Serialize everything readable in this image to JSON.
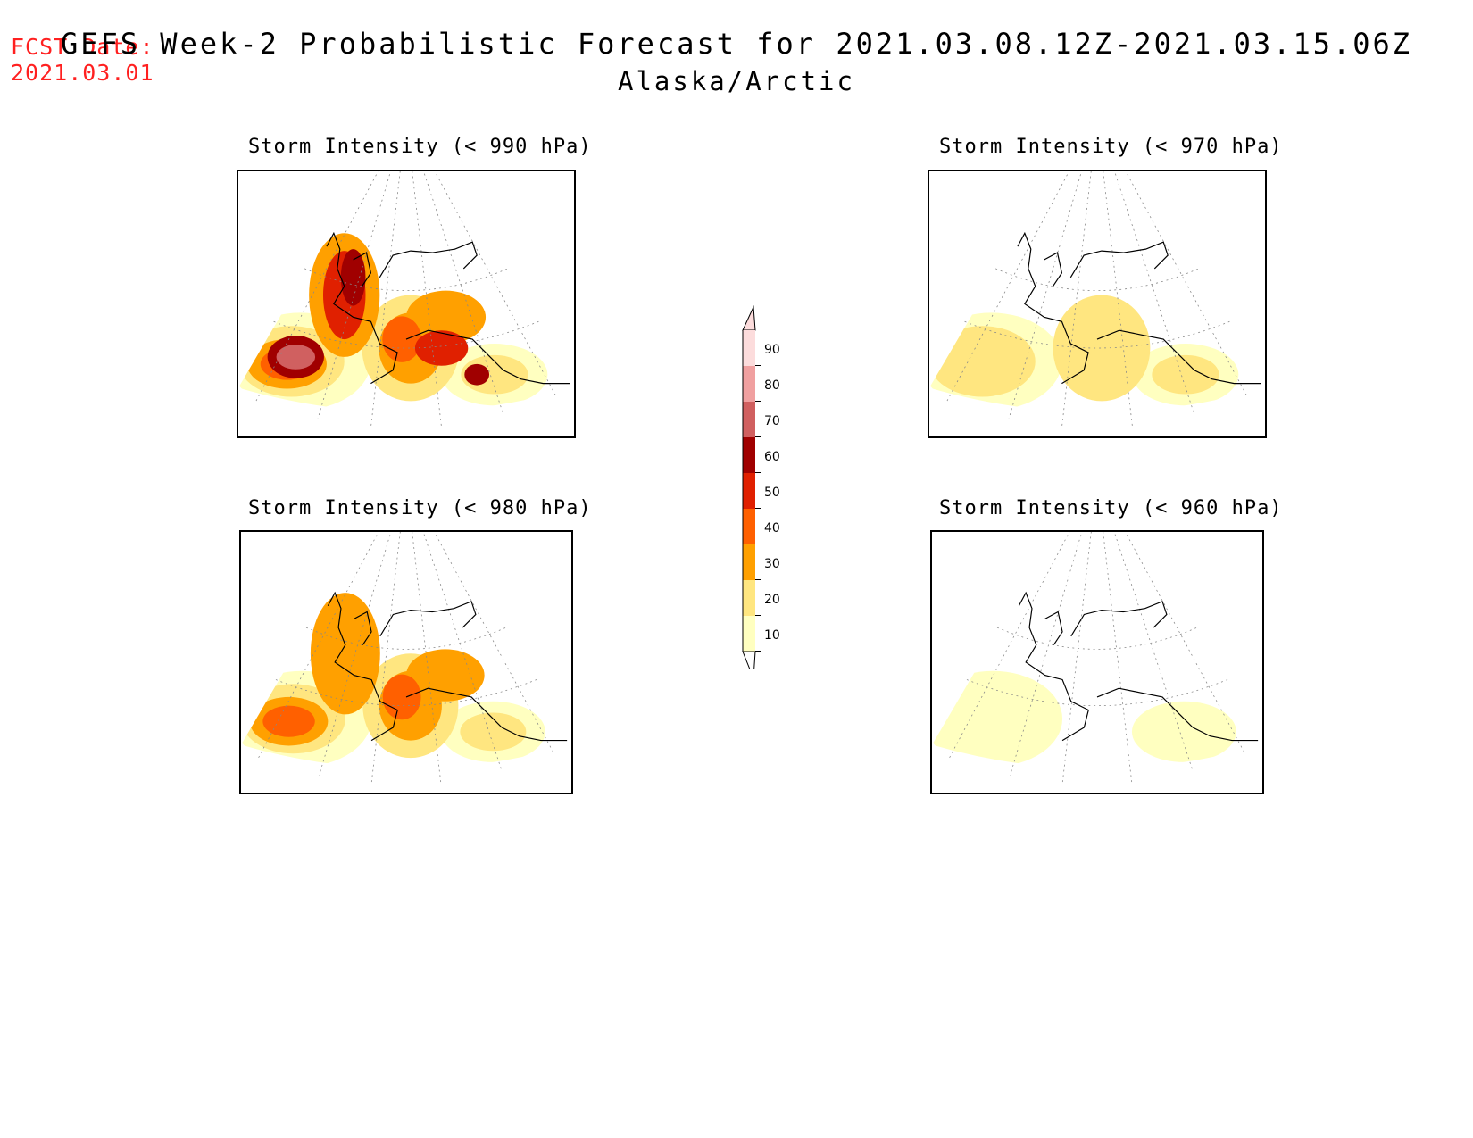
{
  "header": {
    "fcst_label": "FCST Date:",
    "fcst_date": "2021.03.01",
    "title": "GEFS Week-2 Probabilistic Forecast for 2021.03.08.12Z-2021.03.15.06Z",
    "subtitle": "Alaska/Arctic"
  },
  "panels": [
    {
      "id": "p990",
      "title": "Storm Intensity (< 990 hPa)",
      "max_level": 7
    },
    {
      "id": "p970",
      "title": "Storm Intensity (< 970 hPa)",
      "max_level": 2
    },
    {
      "id": "p980",
      "title": "Storm Intensity (< 980 hPa)",
      "max_level": 4
    },
    {
      "id": "p960",
      "title": "Storm Intensity (< 960 hPa)",
      "max_level": 1
    }
  ],
  "colorbar": {
    "levels": [
      "10",
      "20",
      "30",
      "40",
      "50",
      "60",
      "70",
      "80",
      "90"
    ],
    "colors": [
      "#ffffc0",
      "#ffe680",
      "#ffa000",
      "#ff6000",
      "#e02000",
      "#a00000",
      "#d06060",
      "#f0a0a0",
      "#fcdcdc"
    ]
  }
}
